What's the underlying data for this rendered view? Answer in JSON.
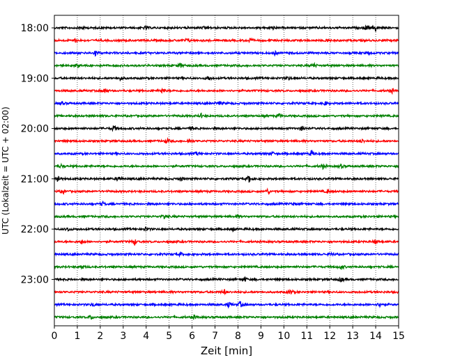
{
  "chart_data": {
    "type": "line",
    "title": "",
    "xlabel": "Zeit  [min]",
    "ylabel": "UTC (Lokalzeit = UTC + 02:00)",
    "xlim": [
      0,
      15
    ],
    "x_ticks": [
      0,
      1,
      2,
      3,
      4,
      5,
      6,
      7,
      8,
      9,
      10,
      11,
      12,
      13,
      14,
      15
    ],
    "grid": "vertical dotted",
    "legend": "none",
    "row_interval_minutes": 15,
    "y_tick_labels": [
      "18:00",
      "19:00",
      "20:00",
      "21:00",
      "22:00",
      "23:00"
    ],
    "colors": [
      "#000000",
      "#ff0000",
      "#0000ff",
      "#008000"
    ],
    "series": [
      {
        "start": "18:00",
        "color": "#000000",
        "events": [
          {
            "x": 1.2,
            "amp": 0.3
          },
          {
            "x": 4.0,
            "amp": 0.25
          },
          {
            "x": 6.6,
            "amp": 0.35
          },
          {
            "x": 9.5,
            "amp": 0.3
          },
          {
            "x": 13.6,
            "amp": 0.5
          },
          {
            "x": 14.0,
            "amp": 0.6
          }
        ]
      },
      {
        "start": "18:15",
        "color": "#ff0000",
        "events": [
          {
            "x": 0.9,
            "amp": 0.3
          },
          {
            "x": 5.8,
            "amp": 0.35
          },
          {
            "x": 8.5,
            "amp": 0.4
          },
          {
            "x": 11.9,
            "amp": 0.25
          }
        ]
      },
      {
        "start": "18:30",
        "color": "#0000ff",
        "events": [
          {
            "x": 1.8,
            "amp": 0.55
          },
          {
            "x": 9.6,
            "amp": 0.35
          },
          {
            "x": 13.7,
            "amp": 0.25
          }
        ]
      },
      {
        "start": "18:45",
        "color": "#008000",
        "events": [
          {
            "x": 1.0,
            "amp": 0.3
          },
          {
            "x": 5.5,
            "amp": 0.45
          },
          {
            "x": 11.3,
            "amp": 0.4
          }
        ]
      },
      {
        "start": "19:00",
        "color": "#000000",
        "events": [
          {
            "x": 2.9,
            "amp": 0.4
          },
          {
            "x": 6.7,
            "amp": 0.45
          },
          {
            "x": 10.2,
            "amp": 0.3
          }
        ]
      },
      {
        "start": "19:15",
        "color": "#ff0000",
        "events": [
          {
            "x": 2.2,
            "amp": 0.5
          },
          {
            "x": 4.7,
            "amp": 0.4
          },
          {
            "x": 14.7,
            "amp": 0.35
          }
        ]
      },
      {
        "start": "19:30",
        "color": "#0000ff",
        "events": [
          {
            "x": 0.3,
            "amp": 0.3
          },
          {
            "x": 7.2,
            "amp": 0.3
          },
          {
            "x": 11.8,
            "amp": 0.35
          }
        ]
      },
      {
        "start": "19:45",
        "color": "#008000",
        "events": [
          {
            "x": 6.4,
            "amp": 0.35
          },
          {
            "x": 9.8,
            "amp": 0.3
          }
        ]
      },
      {
        "start": "20:00",
        "color": "#000000",
        "events": [
          {
            "x": 2.6,
            "amp": 0.5
          },
          {
            "x": 10.8,
            "amp": 0.45
          },
          {
            "x": 6.0,
            "amp": 0.3
          }
        ]
      },
      {
        "start": "20:15",
        "color": "#ff0000",
        "events": [
          {
            "x": 4.9,
            "amp": 0.45
          },
          {
            "x": 5.9,
            "amp": 0.35
          },
          {
            "x": 13.4,
            "amp": 0.35
          }
        ]
      },
      {
        "start": "20:30",
        "color": "#0000ff",
        "events": [
          {
            "x": 6.2,
            "amp": 0.3
          },
          {
            "x": 11.2,
            "amp": 0.6
          },
          {
            "x": 9.5,
            "amp": 0.3
          }
        ]
      },
      {
        "start": "20:45",
        "color": "#008000",
        "events": [
          {
            "x": 0.3,
            "amp": 0.3
          },
          {
            "x": 11.7,
            "amp": 0.35
          },
          {
            "x": 12.5,
            "amp": 0.3
          }
        ]
      },
      {
        "start": "21:00",
        "color": "#000000",
        "events": [
          {
            "x": 0.15,
            "amp": 0.8
          },
          {
            "x": 2.8,
            "amp": 0.55
          },
          {
            "x": 5.5,
            "amp": 0.4
          },
          {
            "x": 8.5,
            "amp": 0.75
          }
        ]
      },
      {
        "start": "21:15",
        "color": "#ff0000",
        "events": [
          {
            "x": 0.4,
            "amp": 0.35
          },
          {
            "x": 9.3,
            "amp": 0.45
          },
          {
            "x": 11.9,
            "amp": 0.3
          }
        ]
      },
      {
        "start": "21:30",
        "color": "#0000ff",
        "events": [
          {
            "x": 2.1,
            "amp": 0.35
          },
          {
            "x": 10.4,
            "amp": 0.3
          }
        ]
      },
      {
        "start": "21:45",
        "color": "#008000",
        "events": [
          {
            "x": 4.8,
            "amp": 0.55
          },
          {
            "x": 8.0,
            "amp": 0.3
          }
        ]
      },
      {
        "start": "22:00",
        "color": "#000000",
        "events": [
          {
            "x": 0.6,
            "amp": 0.3
          },
          {
            "x": 4.0,
            "amp": 0.3
          },
          {
            "x": 7.8,
            "amp": 0.3
          }
        ]
      },
      {
        "start": "22:15",
        "color": "#ff0000",
        "events": [
          {
            "x": 1.2,
            "amp": 0.35
          },
          {
            "x": 3.5,
            "amp": 0.55
          },
          {
            "x": 14.0,
            "amp": 0.45
          }
        ]
      },
      {
        "start": "22:30",
        "color": "#0000ff",
        "events": [
          {
            "x": 5.5,
            "amp": 0.3
          },
          {
            "x": 12.1,
            "amp": 0.3
          }
        ]
      },
      {
        "start": "22:45",
        "color": "#008000",
        "events": [
          {
            "x": 1.2,
            "amp": 0.35
          },
          {
            "x": 12.5,
            "amp": 0.4
          }
        ]
      },
      {
        "start": "23:00",
        "color": "#000000",
        "events": [
          {
            "x": 8.3,
            "amp": 0.35
          },
          {
            "x": 12.5,
            "amp": 0.4
          }
        ]
      },
      {
        "start": "23:15",
        "color": "#ff0000",
        "events": [
          {
            "x": 7.4,
            "amp": 0.4
          },
          {
            "x": 10.3,
            "amp": 0.45
          }
        ]
      },
      {
        "start": "23:30",
        "color": "#0000ff",
        "events": [
          {
            "x": 1.7,
            "amp": 0.35
          },
          {
            "x": 7.6,
            "amp": 0.5
          },
          {
            "x": 8.1,
            "amp": 0.5
          },
          {
            "x": 14.2,
            "amp": 0.45
          }
        ]
      },
      {
        "start": "23:45",
        "color": "#008000",
        "events": [
          {
            "x": 1.6,
            "amp": 0.35
          },
          {
            "x": 6.1,
            "amp": 0.35
          }
        ]
      }
    ]
  }
}
